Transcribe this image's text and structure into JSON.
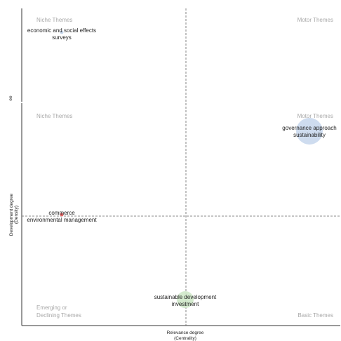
{
  "chart_data": [
    {
      "type": "scatter",
      "quadrant_labels": {
        "top_left": "Niche Themes",
        "top_right": "Motor Themes"
      },
      "ylabel_fragment": "ee",
      "points": [
        {
          "label_lines": [
            "economic and social effects",
            "surveys"
          ],
          "color": "#c5d6ec"
        }
      ]
    },
    {
      "type": "scatter",
      "xlabel_lines": [
        "Relevance degree",
        "(Centrality)"
      ],
      "ylabel_lines": [
        "Development degree",
        "(Density)"
      ],
      "grid": false,
      "quadrant_labels": {
        "top_left": "Niche Themes",
        "top_right": "Motor Themes",
        "bottom_left_lines": [
          "Emerging or",
          "Declining Themes"
        ],
        "bottom_right": "Basic Themes"
      },
      "points": [
        {
          "label_lines": [
            "governance approach",
            "sustainability"
          ],
          "color": "#c5d6ec",
          "size": "large"
        },
        {
          "label_lines": [
            "commerce",
            "environmental management"
          ],
          "color": "#e06666",
          "size": "small"
        },
        {
          "label_lines": [
            "sustainable development",
            "investment"
          ],
          "color": "#cfe8c9",
          "size": "medium"
        }
      ]
    }
  ]
}
